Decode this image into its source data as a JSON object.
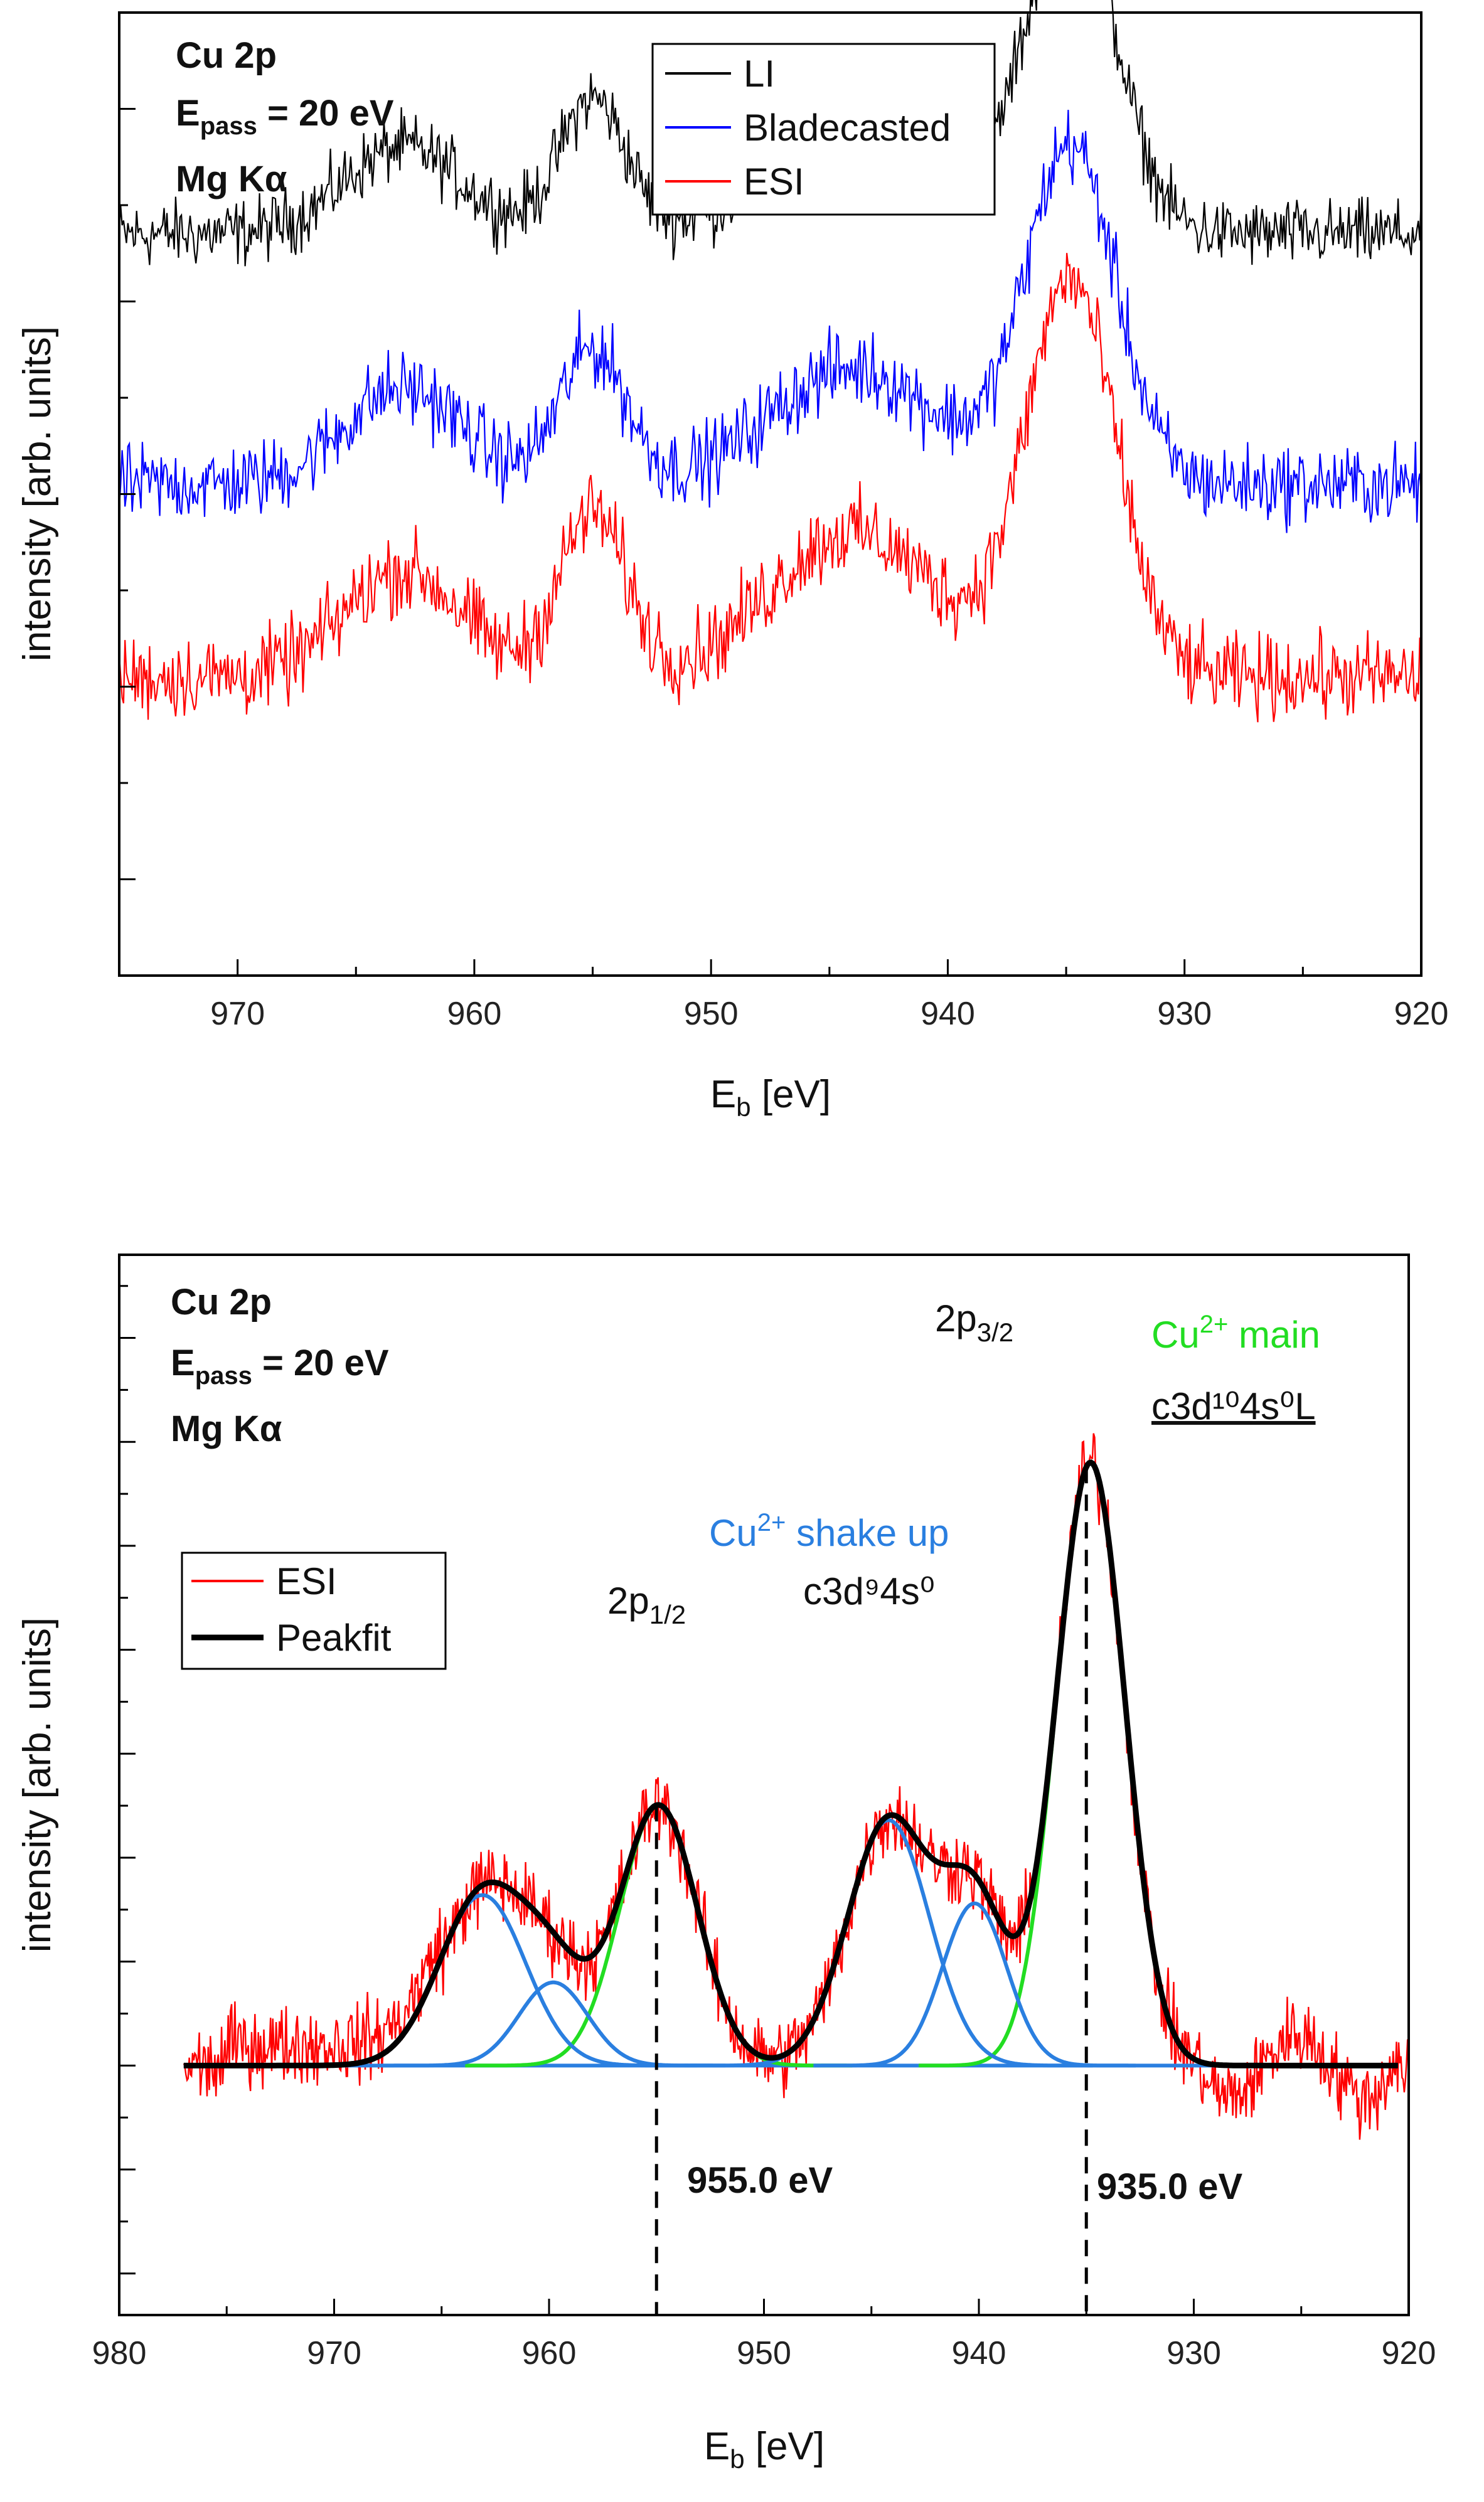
{
  "chart_data": [
    {
      "type": "line",
      "panel": "top",
      "xlabel_main": "E",
      "xlabel_sub": "b",
      "xlabel_unit": " [eV]",
      "ylabel": "intensity [arb. units]",
      "xlim": [
        975,
        920
      ],
      "ylim": [
        0,
        5
      ],
      "grid": false,
      "x_ticks": [
        970,
        960,
        950,
        940,
        930,
        920
      ],
      "x_tick_labels": [
        "970",
        "960",
        "950",
        "940",
        "930",
        "920"
      ],
      "y_ticks_major": [
        0.5,
        1.5,
        2.5,
        3.5,
        4.5
      ],
      "info_lines": [
        {
          "main": "Cu 2p",
          "sub": ""
        },
        {
          "main": "E",
          "sub": "pass",
          "rest": " = 20 eV"
        },
        {
          "main": "Mg Kα",
          "sub": ""
        }
      ],
      "legend_position": "top-center",
      "series": [
        {
          "name": "LI",
          "color": "#000000",
          "baseline": 3.85,
          "noise": 0.26,
          "peaks": [
            [
              934.8,
              1.7,
              1.9
            ],
            [
              955.0,
              0.7,
              1.4
            ],
            [
              944.0,
              0.55,
              3.5
            ],
            [
              963.0,
              0.45,
              2.5
            ]
          ]
        },
        {
          "name": "Bladecasted",
          "color": "#0000ff",
          "baseline": 2.55,
          "noise": 0.3,
          "peaks": [
            [
              934.8,
              1.75,
              1.9
            ],
            [
              955.0,
              0.7,
              1.4
            ],
            [
              944.0,
              0.6,
              3.5
            ],
            [
              963.0,
              0.5,
              2.5
            ]
          ]
        },
        {
          "name": "ESI",
          "color": "#ff0000",
          "baseline": 1.55,
          "noise": 0.32,
          "peaks": [
            [
              934.8,
              2.05,
              1.9
            ],
            [
              955.0,
              0.85,
              1.4
            ],
            [
              944.0,
              0.75,
              3.5
            ],
            [
              963.0,
              0.55,
              2.5
            ]
          ]
        }
      ]
    },
    {
      "type": "line",
      "panel": "bottom",
      "xlabel_main": "E",
      "xlabel_sub": "b",
      "xlabel_unit": " [eV]",
      "ylabel": "intensity [arb. units]",
      "xlim": [
        980,
        920
      ],
      "ylim": [
        -1.2,
        3.9
      ],
      "grid": false,
      "x_ticks": [
        980,
        970,
        960,
        950,
        940,
        930,
        920
      ],
      "x_tick_labels": [
        "980",
        "970",
        "960",
        "950",
        "940",
        "930",
        "920"
      ],
      "y_ticks_major": [
        -1.0,
        -0.5,
        0,
        0.5,
        1.0,
        1.5,
        2.0,
        2.5,
        3.0,
        3.5
      ],
      "info_lines": [
        {
          "main": "Cu 2p",
          "sub": ""
        },
        {
          "main": "E",
          "sub": "pass",
          "rest": " = 20 eV"
        },
        {
          "main": "Mg Kα",
          "sub": ""
        }
      ],
      "legend_position": "middle-left",
      "legend": [
        {
          "name": "ESI",
          "color": "#ff0000"
        },
        {
          "name": "Peakfit",
          "color": "#000000"
        }
      ],
      "esi_noise": 0.28,
      "fit_components": [
        {
          "name": "Cu2+ main 2p3/2",
          "color": "#22dd22",
          "center": 934.8,
          "amplitude": 2.9,
          "width": 1.6
        },
        {
          "name": "Cu2+ main 2p1/2",
          "color": "#22dd22",
          "center": 954.9,
          "amplitude": 1.25,
          "width": 1.8
        },
        {
          "name": "shake up 944",
          "color": "#2a7fe0",
          "center": 944.2,
          "amplitude": 1.18,
          "width": 1.9
        },
        {
          "name": "shake up 940",
          "color": "#2a7fe0",
          "center": 940.2,
          "amplitude": 0.78,
          "width": 1.5
        },
        {
          "name": "shake up 963",
          "color": "#2a7fe0",
          "center": 963.1,
          "amplitude": 0.82,
          "width": 2.0
        },
        {
          "name": "shake up 960",
          "color": "#2a7fe0",
          "center": 959.8,
          "amplitude": 0.4,
          "width": 1.6
        }
      ],
      "dashed_lines": [
        955.0,
        935.0
      ],
      "annotations": [
        {
          "id": "peak_2p32",
          "main": "2p",
          "sub": "3/2",
          "color": "#111111"
        },
        {
          "id": "cu_main",
          "main": "Cu",
          "sup": "2+",
          "rest": " main",
          "color": "#22dd22"
        },
        {
          "id": "config_main",
          "text": "c3d¹⁰4s⁰L",
          "color": "#111111"
        },
        {
          "id": "cu_shake",
          "main": "Cu",
          "sup": "2+",
          "rest": " shake up",
          "color": "#2a7fe0"
        },
        {
          "id": "config_shake",
          "text": "c3d⁹4s⁰",
          "color": "#111111"
        },
        {
          "id": "peak_2p12",
          "main": "2p",
          "sub": "1/2",
          "color": "#111111"
        },
        {
          "id": "e955",
          "text": "955.0 eV",
          "color": "#111111"
        },
        {
          "id": "e935",
          "text": "935.0 eV",
          "color": "#111111"
        }
      ]
    }
  ]
}
